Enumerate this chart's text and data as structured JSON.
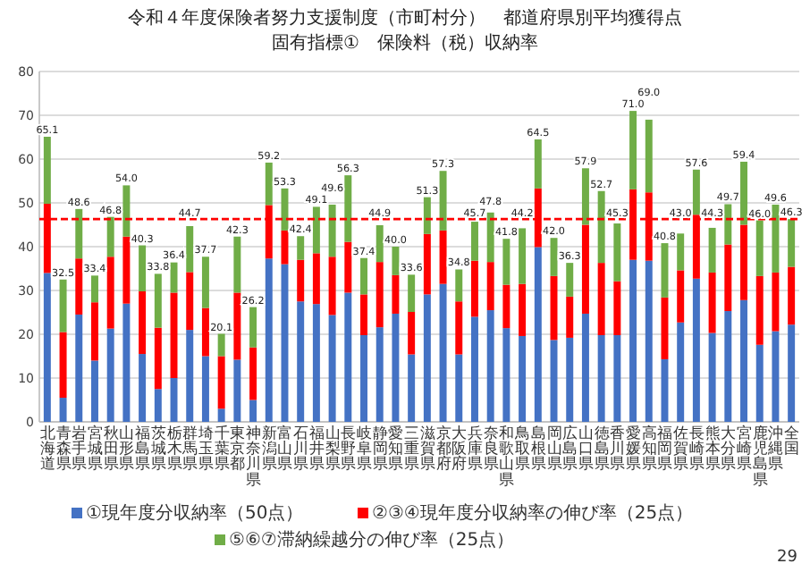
{
  "chart_data": {
    "type": "bar",
    "stacked": true,
    "title": "令和４年度保険者努力支援制度（市町村分）　都道府県別平均獲得点",
    "subtitle": "固有指標①　保険料（税）収納率",
    "categories": [
      "北海道",
      "青森県",
      "岩手県",
      "宮城県",
      "秋田県",
      "山形県",
      "福島県",
      "茨城県",
      "栃木県",
      "群馬県",
      "埼玉県",
      "千葉県",
      "東京都",
      "神奈川県",
      "新潟県",
      "富山県",
      "石川県",
      "福井県",
      "山梨県",
      "長野県",
      "岐阜県",
      "静岡県",
      "愛知県",
      "三重県",
      "滋賀県",
      "京都府",
      "大阪府",
      "兵庫県",
      "奈良県",
      "和歌山県",
      "鳥取県",
      "島根県",
      "岡山県",
      "広島県",
      "山口県",
      "徳島県",
      "香川県",
      "愛媛県",
      "高知県",
      "福岡県",
      "佐賀県",
      "長崎県",
      "熊本県",
      "大分県",
      "宮崎県",
      "鹿児島県",
      "沖縄県",
      "全国"
    ],
    "series": [
      {
        "name": "①現年度分収納率（50点）",
        "color": "#4472c4",
        "values": [
          34,
          5.5,
          24.5,
          14,
          21.3,
          27,
          15.5,
          7.5,
          10,
          21,
          15,
          3,
          14.2,
          5,
          37.3,
          36,
          27.5,
          26.9,
          24.4,
          29.5,
          19.8,
          21.6,
          24.7,
          15.4,
          29.1,
          31.5,
          15.4,
          24,
          25.5,
          21.4,
          19.6,
          39.9,
          18.7,
          19.2,
          24.7,
          19.8,
          19.8,
          37,
          36.8,
          14.3,
          22.7,
          32.7,
          20.3,
          25.3,
          27.8,
          17.6,
          20.7,
          22.2
        ]
      },
      {
        "name": "②③④現年度分収納率の伸び率（25点）",
        "color": "#ff0000",
        "values": [
          15.8,
          15.0,
          12.8,
          13.3,
          16.4,
          15.3,
          14.3,
          14.0,
          19.5,
          13.2,
          11,
          12,
          15.3,
          12,
          12.2,
          7.7,
          9.5,
          11.6,
          13.3,
          11.6,
          9.3,
          14.9,
          8.8,
          9.7,
          13.8,
          12.2,
          12.1,
          12.8,
          11,
          9.9,
          11.9,
          13.4,
          14.6,
          9.4,
          20.3,
          16.5,
          12.3,
          16.1,
          15.6,
          14.1,
          11.9,
          14.6,
          13.8,
          15.2,
          17.2,
          15.7,
          13.4,
          13.2
        ]
      },
      {
        "name": "⑤⑥⑦滞納繰越分の伸び率（25点）",
        "color": "#70ad47",
        "values": [
          15.3,
          12.0,
          11.3,
          6.1,
          9.1,
          11.7,
          10.5,
          12.3,
          6.9,
          10.5,
          11.7,
          5.1,
          12.8,
          9.2,
          9.7,
          9.6,
          5.4,
          10.6,
          11.9,
          15.2,
          8.3,
          8.4,
          6.5,
          8.5,
          8.4,
          13.6,
          7.3,
          8.9,
          11.3,
          10.5,
          12.7,
          11.2,
          8.7,
          7.7,
          12.9,
          16.4,
          13.2,
          17.9,
          16.6,
          12.4,
          8.4,
          10.3,
          10.2,
          9.2,
          14.4,
          12.7,
          15.5,
          10.9
        ]
      }
    ],
    "totals": [
      "65.1",
      "32.5",
      "48.6",
      "33.4",
      "46.8",
      "54.0",
      "40.3",
      "33.8",
      "36.4",
      "44.7",
      "37.7",
      "20.1",
      "42.3",
      "26.2",
      "59.2",
      "53.3",
      "42.4",
      "49.1",
      "49.6",
      "56.3",
      "37.4",
      "44.9",
      "40.0",
      "33.6",
      "51.3",
      "57.3",
      "34.8",
      "45.7",
      "47.8",
      "41.8",
      "44.2",
      "64.5",
      "42.0",
      "36.3",
      "57.9",
      "52.7",
      "45.3",
      "71.0",
      "69.0",
      "40.8",
      "43.0",
      "57.6",
      "44.3",
      "49.7",
      "59.4",
      "46.0",
      "49.6",
      "46.3"
    ],
    "ref_lines": [
      {
        "axis": "y",
        "value": 46.3,
        "color": "#ff0000",
        "line_style": "dashed"
      }
    ],
    "ylim": [
      0,
      80
    ],
    "yticks": [
      0,
      10,
      20,
      30,
      40,
      50,
      60,
      70,
      80
    ],
    "grid": "y",
    "legend": "bottom",
    "annotations": [
      "29"
    ]
  }
}
